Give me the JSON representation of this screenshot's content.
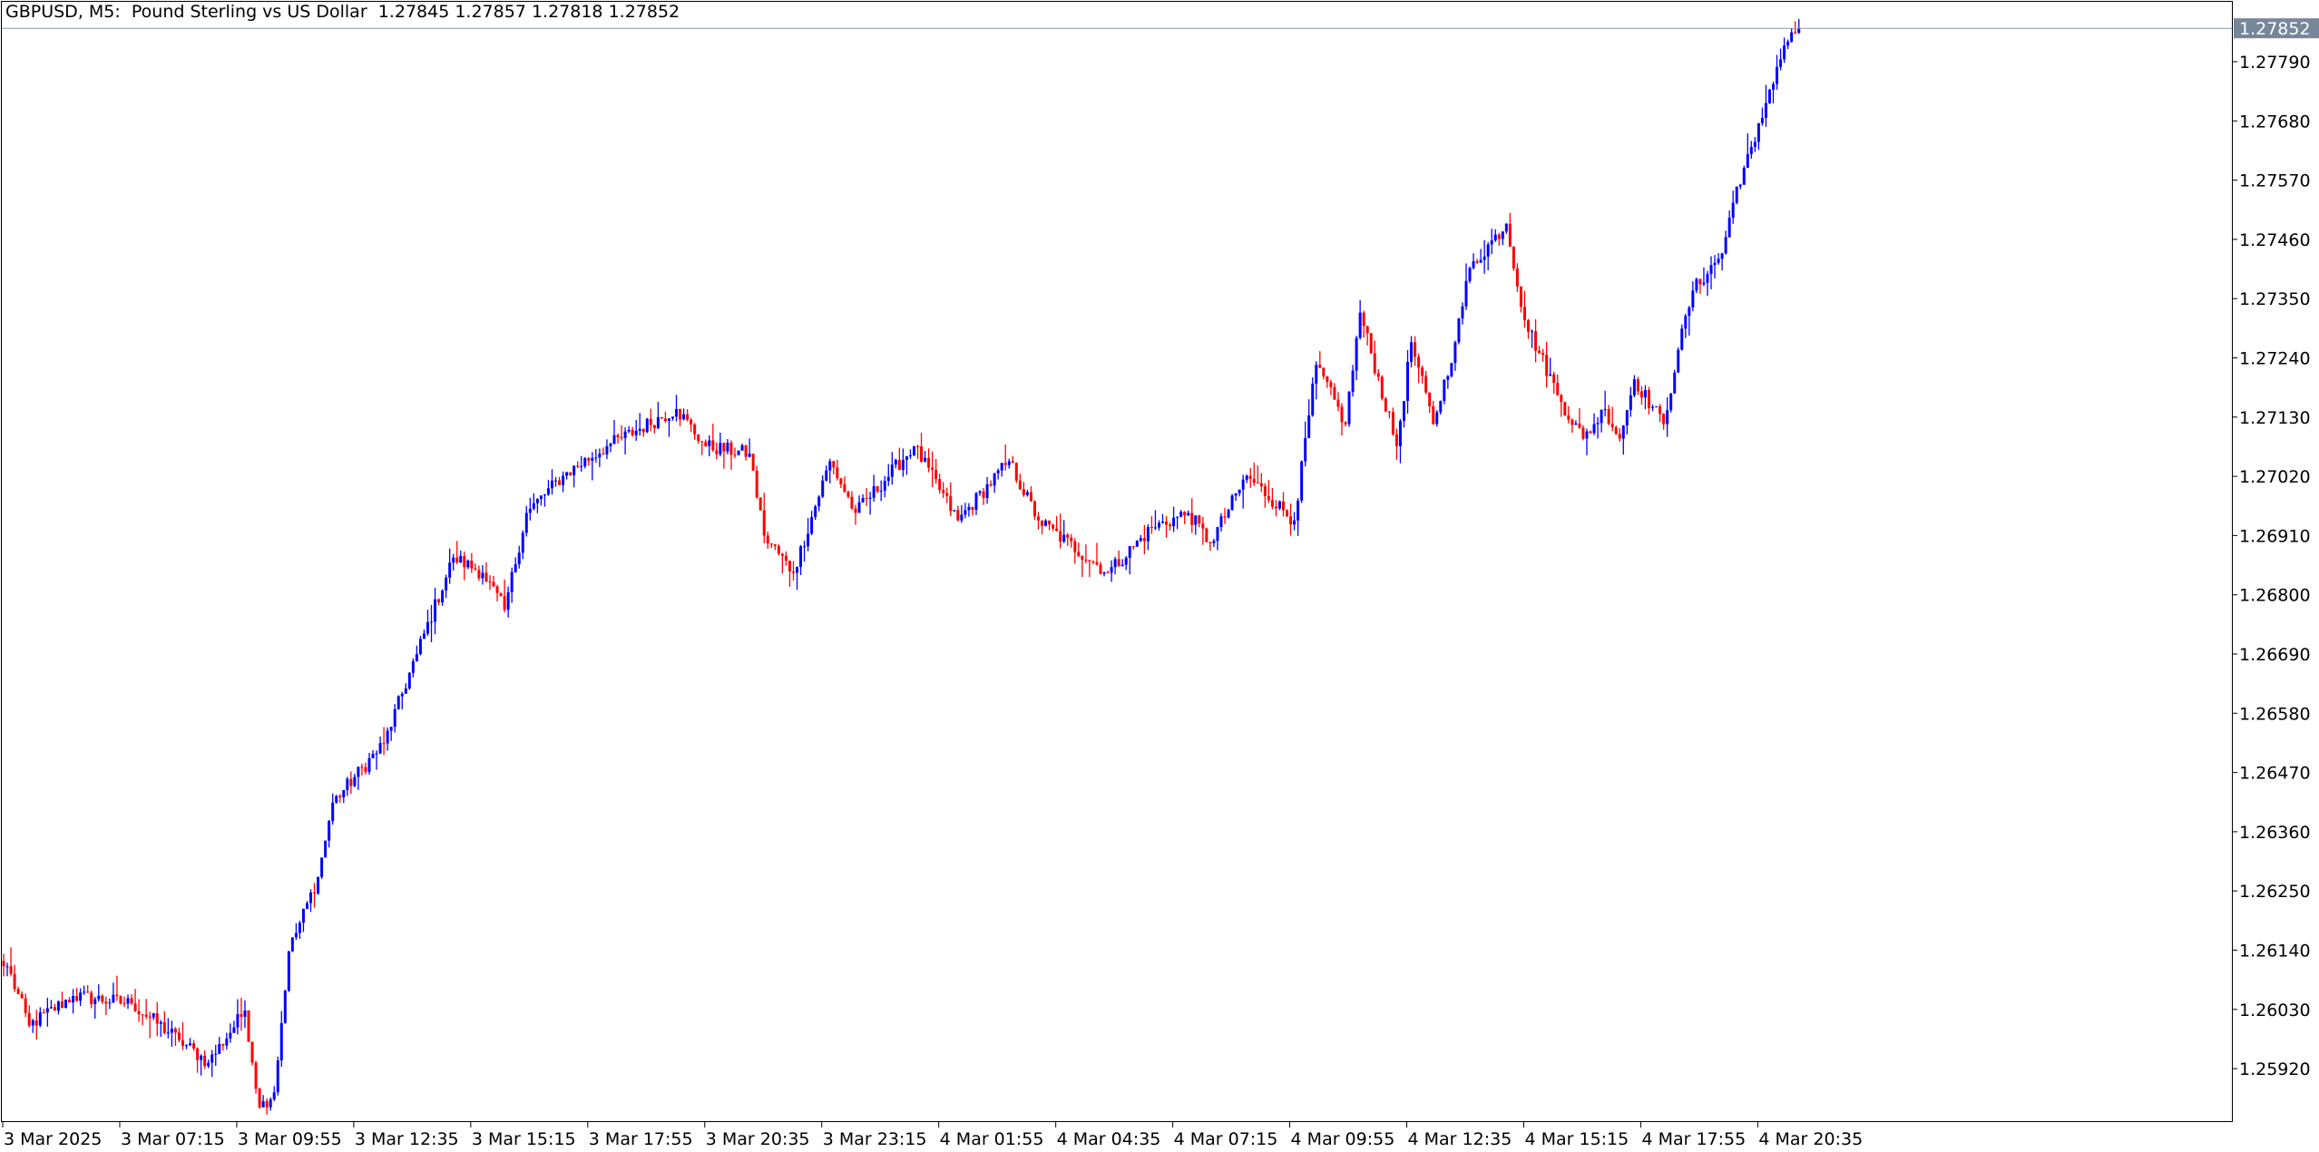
{
  "header": {
    "symbol": "GBPUSD, M5:",
    "description": "Pound Sterling vs US Dollar",
    "ohlc": "1.27845 1.27857 1.27818 1.27852"
  },
  "colors": {
    "bull": "#0000ff",
    "bear": "#ff0000",
    "price_line": "#8a9aaa",
    "price_label_bg": "#76879a",
    "axis": "#000000"
  },
  "chart_data": {
    "type": "candlestick",
    "symbol": "GBPUSD",
    "timeframe": "M5",
    "first_bar_time": "2025-03-03 04:35",
    "last_bar_time": "2025-03-04 21:30",
    "ylim": [
      1.2582,
      1.2789
    ],
    "current_price": "1.27852",
    "y_ticks": [
      "1.27790",
      "1.27680",
      "1.27570",
      "1.27460",
      "1.27350",
      "1.27240",
      "1.27130",
      "1.27020",
      "1.26910",
      "1.26800",
      "1.26690",
      "1.26580",
      "1.26470",
      "1.26360",
      "1.26250",
      "1.26140",
      "1.26030",
      "1.25920"
    ],
    "x_ticks": [
      "3 Mar 2025",
      "3 Mar 07:15",
      "3 Mar 09:55",
      "3 Mar 12:35",
      "3 Mar 15:15",
      "3 Mar 17:55",
      "3 Mar 20:35",
      "3 Mar 23:15",
      "4 Mar 01:55",
      "4 Mar 04:35",
      "4 Mar 07:15",
      "4 Mar 09:55",
      "4 Mar 12:35",
      "4 Mar 15:15",
      "4 Mar 17:55",
      "4 Mar 20:35"
    ],
    "close_path": [
      [
        "2025-03-03 04:40",
        1.2611
      ],
      [
        "2025-03-03 05:10",
        1.26
      ],
      [
        "2025-03-03 06:10",
        1.26055
      ],
      [
        "2025-03-03 07:30",
        1.26041
      ],
      [
        "2025-03-03 08:35",
        1.25973
      ],
      [
        "2025-03-03 09:15",
        1.25931
      ],
      [
        "2025-03-03 10:05",
        1.26028
      ],
      [
        "2025-03-03 10:25",
        1.25848
      ],
      [
        "2025-03-03 10:45",
        1.25876
      ],
      [
        "2025-03-03 11:05",
        1.26138
      ],
      [
        "2025-03-03 11:45",
        1.26276
      ],
      [
        "2025-03-03 12:05",
        1.26414
      ],
      [
        "2025-03-03 13:15",
        1.26524
      ],
      [
        "2025-03-03 14:00",
        1.2669
      ],
      [
        "2025-03-03 14:50",
        1.26869
      ],
      [
        "2025-03-03 15:30",
        1.26841
      ],
      [
        "2025-03-03 16:00",
        1.26772
      ],
      [
        "2025-03-03 16:30",
        1.26952
      ],
      [
        "2025-03-03 17:20",
        1.27021
      ],
      [
        "2025-03-03 18:20",
        1.27076
      ],
      [
        "2025-03-03 19:55",
        1.27145
      ],
      [
        "2025-03-03 20:35",
        1.27076
      ],
      [
        "2025-03-03 21:35",
        1.27062
      ],
      [
        "2025-03-03 21:55",
        1.2691
      ],
      [
        "2025-03-03 22:35",
        1.26841
      ],
      [
        "2025-03-03 23:25",
        1.27048
      ],
      [
        "2025-03-04 00:00",
        1.26952
      ],
      [
        "2025-03-04 01:20",
        1.27076
      ],
      [
        "2025-03-04 02:20",
        1.26938
      ],
      [
        "2025-03-04 03:30",
        1.27048
      ],
      [
        "2025-03-04 04:10",
        1.26938
      ],
      [
        "2025-03-04 05:45",
        1.26841
      ],
      [
        "2025-03-04 06:45",
        1.26924
      ],
      [
        "2025-03-04 07:35",
        1.26952
      ],
      [
        "2025-03-04 08:05",
        1.26896
      ],
      [
        "2025-03-04 08:55",
        1.27021
      ],
      [
        "2025-03-04 10:00",
        1.26938
      ],
      [
        "2025-03-04 10:30",
        1.27227
      ],
      [
        "2025-03-04 11:10",
        1.27117
      ],
      [
        "2025-03-04 11:30",
        1.27324
      ],
      [
        "2025-03-04 12:20",
        1.27076
      ],
      [
        "2025-03-04 12:40",
        1.27269
      ],
      [
        "2025-03-04 13:10",
        1.27117
      ],
      [
        "2025-03-04 13:40",
        1.27269
      ],
      [
        "2025-03-04 14:00",
        1.27407
      ],
      [
        "2025-03-04 14:50",
        1.27489
      ],
      [
        "2025-03-04 15:15",
        1.2731
      ],
      [
        "2025-03-04 16:05",
        1.27158
      ],
      [
        "2025-03-04 16:35",
        1.2709
      ],
      [
        "2025-03-04 17:05",
        1.27145
      ],
      [
        "2025-03-04 17:25",
        1.2709
      ],
      [
        "2025-03-04 17:45",
        1.272
      ],
      [
        "2025-03-04 18:25",
        1.27117
      ],
      [
        "2025-03-04 18:45",
        1.27255
      ],
      [
        "2025-03-04 19:05",
        1.27365
      ],
      [
        "2025-03-04 19:45",
        1.27434
      ],
      [
        "2025-03-04 20:05",
        1.27558
      ],
      [
        "2025-03-04 20:30",
        1.27641
      ],
      [
        "2025-03-04 20:50",
        1.27738
      ],
      [
        "2025-03-04 21:10",
        1.2782
      ],
      [
        "2025-03-04 21:30",
        1.27852
      ]
    ],
    "grid": false
  }
}
